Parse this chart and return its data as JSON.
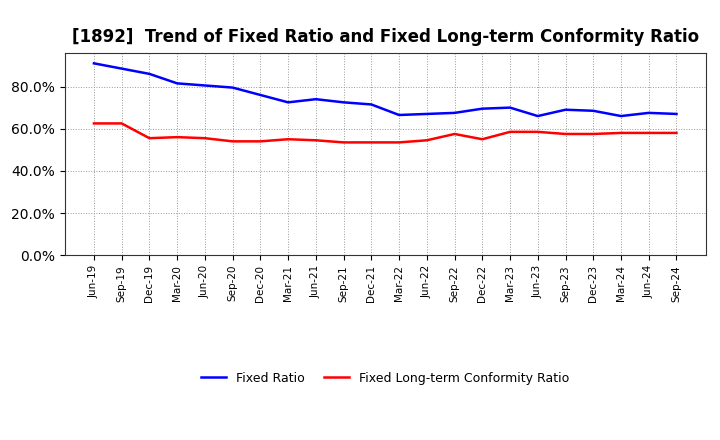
{
  "title": "[1892]  Trend of Fixed Ratio and Fixed Long-term Conformity Ratio",
  "x_labels": [
    "Jun-19",
    "Sep-19",
    "Dec-19",
    "Mar-20",
    "Jun-20",
    "Sep-20",
    "Dec-20",
    "Mar-21",
    "Jun-21",
    "Sep-21",
    "Dec-21",
    "Mar-22",
    "Jun-22",
    "Sep-22",
    "Dec-22",
    "Mar-23",
    "Jun-23",
    "Sep-23",
    "Dec-23",
    "Mar-24",
    "Jun-24",
    "Sep-24"
  ],
  "fixed_ratio": [
    91.0,
    88.5,
    86.0,
    81.5,
    80.5,
    79.5,
    76.0,
    72.5,
    74.0,
    72.5,
    71.5,
    66.5,
    67.0,
    67.5,
    69.5,
    70.0,
    66.0,
    69.0,
    68.5,
    66.0,
    67.5,
    67.0
  ],
  "fixed_lt_ratio": [
    62.5,
    62.5,
    55.5,
    56.0,
    55.5,
    54.0,
    54.0,
    55.0,
    54.5,
    53.5,
    53.5,
    53.5,
    54.5,
    57.5,
    55.0,
    58.5,
    58.5,
    57.5,
    57.5,
    58.0,
    58.0,
    58.0
  ],
  "fixed_ratio_color": "#0000FF",
  "fixed_lt_ratio_color": "#FF0000",
  "background_color": "#FFFFFF",
  "grid_color": "#999999",
  "ylim": [
    0,
    96
  ],
  "yticks": [
    0,
    20,
    40,
    60,
    80
  ],
  "legend_fixed_ratio": "Fixed Ratio",
  "legend_fixed_lt_ratio": "Fixed Long-term Conformity Ratio",
  "title_fontsize": 12,
  "line_width": 1.8
}
